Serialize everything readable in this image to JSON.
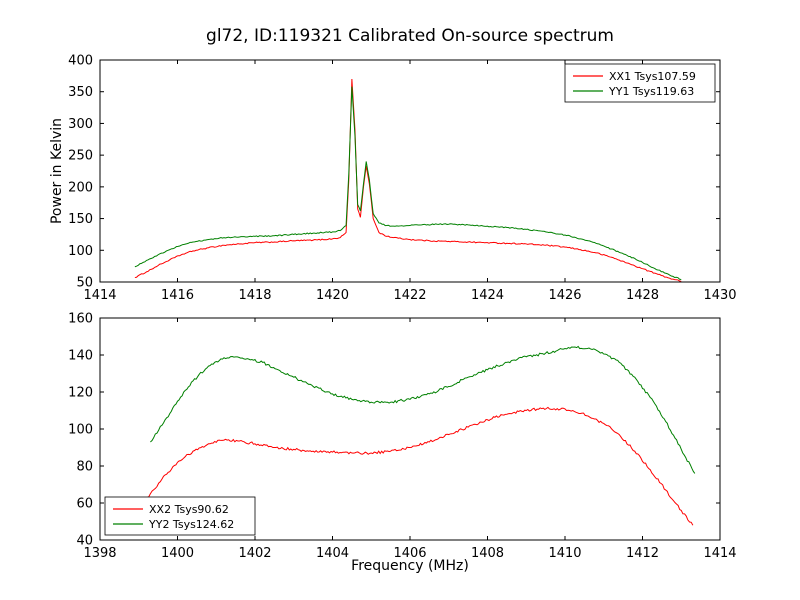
{
  "figure": {
    "background": "#ffffff",
    "frame_color": "#000000",
    "text_color": "#000000"
  },
  "chart_data": [
    {
      "type": "line",
      "title": "gl72, ID:119321 Calibrated On-source spectrum",
      "xlabel": "",
      "ylabel": "Power in Kelvin",
      "xlim": [
        1414,
        1430
      ],
      "ylim": [
        50,
        400
      ],
      "xticks": [
        1414,
        1416,
        1418,
        1420,
        1422,
        1424,
        1426,
        1428,
        1430
      ],
      "yticks": [
        50,
        100,
        150,
        200,
        250,
        300,
        350,
        400
      ],
      "grid": false,
      "legend_position": "top-right",
      "series": [
        {
          "name": "XX1 Tsys107.59",
          "color": "#ff0000",
          "noise": 0.9,
          "points": [
            [
              1414.9,
              57
            ],
            [
              1415.2,
              66
            ],
            [
              1415.5,
              76
            ],
            [
              1415.8,
              85
            ],
            [
              1416.1,
              93
            ],
            [
              1416.4,
              99
            ],
            [
              1416.8,
              104
            ],
            [
              1417.2,
              108
            ],
            [
              1417.6,
              110
            ],
            [
              1418.0,
              112
            ],
            [
              1418.5,
              113
            ],
            [
              1419.0,
              115
            ],
            [
              1419.5,
              116
            ],
            [
              1420.0,
              118
            ],
            [
              1420.2,
              120
            ],
            [
              1420.35,
              128
            ],
            [
              1420.42,
              210
            ],
            [
              1420.5,
              370
            ],
            [
              1420.58,
              290
            ],
            [
              1420.65,
              165
            ],
            [
              1420.72,
              152
            ],
            [
              1420.8,
              200
            ],
            [
              1420.87,
              233
            ],
            [
              1420.95,
              205
            ],
            [
              1421.05,
              150
            ],
            [
              1421.2,
              128
            ],
            [
              1421.4,
              122
            ],
            [
              1421.7,
              119
            ],
            [
              1422.0,
              117
            ],
            [
              1422.5,
              115
            ],
            [
              1423.0,
              114
            ],
            [
              1423.5,
              113
            ],
            [
              1424.0,
              112
            ],
            [
              1424.5,
              111
            ],
            [
              1425.0,
              110
            ],
            [
              1425.5,
              108
            ],
            [
              1426.0,
              105
            ],
            [
              1426.4,
              101
            ],
            [
              1426.8,
              96
            ],
            [
              1427.2,
              89
            ],
            [
              1427.6,
              80
            ],
            [
              1428.0,
              71
            ],
            [
              1428.4,
              62
            ],
            [
              1428.7,
              56
            ],
            [
              1429.0,
              51
            ]
          ]
        },
        {
          "name": "YY1 Tsys119.63",
          "color": "#008000",
          "noise": 0.9,
          "points": [
            [
              1414.9,
              74
            ],
            [
              1415.2,
              84
            ],
            [
              1415.5,
              93
            ],
            [
              1415.8,
              101
            ],
            [
              1416.1,
              108
            ],
            [
              1416.4,
              113
            ],
            [
              1416.8,
              117
            ],
            [
              1417.2,
              120
            ],
            [
              1417.6,
              121
            ],
            [
              1418.0,
              122
            ],
            [
              1418.5,
              123
            ],
            [
              1419.0,
              125
            ],
            [
              1419.5,
              127
            ],
            [
              1420.0,
              129
            ],
            [
              1420.2,
              131
            ],
            [
              1420.35,
              139
            ],
            [
              1420.42,
              220
            ],
            [
              1420.5,
              358
            ],
            [
              1420.58,
              280
            ],
            [
              1420.65,
              172
            ],
            [
              1420.72,
              162
            ],
            [
              1420.8,
              205
            ],
            [
              1420.87,
              240
            ],
            [
              1420.95,
              212
            ],
            [
              1421.05,
              158
            ],
            [
              1421.2,
              143
            ],
            [
              1421.4,
              139
            ],
            [
              1421.7,
              138
            ],
            [
              1422.0,
              139
            ],
            [
              1422.3,
              140
            ],
            [
              1422.7,
              141
            ],
            [
              1423.0,
              141
            ],
            [
              1423.5,
              140
            ],
            [
              1424.0,
              138
            ],
            [
              1424.5,
              136
            ],
            [
              1425.0,
              133
            ],
            [
              1425.5,
              129
            ],
            [
              1426.0,
              124
            ],
            [
              1426.4,
              118
            ],
            [
              1426.8,
              111
            ],
            [
              1427.2,
              102
            ],
            [
              1427.6,
              92
            ],
            [
              1428.0,
              81
            ],
            [
              1428.4,
              69
            ],
            [
              1428.7,
              61
            ],
            [
              1429.0,
              54
            ]
          ]
        }
      ]
    },
    {
      "type": "line",
      "title": "",
      "xlabel": "Frequency (MHz)",
      "ylabel": "",
      "xlim": [
        1398,
        1414
      ],
      "ylim": [
        40,
        160
      ],
      "xticks": [
        1398,
        1400,
        1402,
        1404,
        1406,
        1408,
        1410,
        1412,
        1414
      ],
      "yticks": [
        40,
        60,
        80,
        100,
        120,
        140,
        160
      ],
      "grid": false,
      "legend_position": "bottom-left",
      "series": [
        {
          "name": "XX2 Tsys90.62",
          "color": "#ff0000",
          "noise": 0.7,
          "points": [
            [
              1399.0,
              58
            ],
            [
              1399.3,
              65
            ],
            [
              1399.6,
              73
            ],
            [
              1400.0,
              82
            ],
            [
              1400.4,
              88
            ],
            [
              1400.8,
              92
            ],
            [
              1401.2,
              94
            ],
            [
              1401.6,
              93.5
            ],
            [
              1402.0,
              92
            ],
            [
              1402.5,
              90
            ],
            [
              1403.0,
              89
            ],
            [
              1403.5,
              88
            ],
            [
              1404.0,
              87.5
            ],
            [
              1404.5,
              87
            ],
            [
              1405.0,
              87
            ],
            [
              1405.5,
              88
            ],
            [
              1406.0,
              90
            ],
            [
              1406.5,
              93
            ],
            [
              1407.0,
              97
            ],
            [
              1407.5,
              101
            ],
            [
              1408.0,
              105
            ],
            [
              1408.5,
              108
            ],
            [
              1409.0,
              110
            ],
            [
              1409.4,
              111
            ],
            [
              1409.8,
              111
            ],
            [
              1410.2,
              110
            ],
            [
              1410.6,
              107
            ],
            [
              1411.0,
              103
            ],
            [
              1411.4,
              97
            ],
            [
              1411.8,
              88
            ],
            [
              1412.2,
              78
            ],
            [
              1412.6,
              67
            ],
            [
              1413.0,
              56
            ],
            [
              1413.3,
              48
            ]
          ]
        },
        {
          "name": "YY2 Tsys124.62",
          "color": "#008000",
          "noise": 0.7,
          "points": [
            [
              1399.3,
              93
            ],
            [
              1399.6,
              102
            ],
            [
              1400.0,
              115
            ],
            [
              1400.4,
              126
            ],
            [
              1400.8,
              134
            ],
            [
              1401.2,
              138.5
            ],
            [
              1401.5,
              139
            ],
            [
              1401.8,
              138
            ],
            [
              1402.2,
              136
            ],
            [
              1402.6,
              132
            ],
            [
              1403.0,
              128
            ],
            [
              1403.5,
              123
            ],
            [
              1404.0,
              119
            ],
            [
              1404.5,
              116
            ],
            [
              1405.0,
              114.5
            ],
            [
              1405.5,
              114.5
            ],
            [
              1406.0,
              116
            ],
            [
              1406.5,
              119
            ],
            [
              1407.0,
              123
            ],
            [
              1407.5,
              128
            ],
            [
              1408.0,
              132
            ],
            [
              1408.5,
              136
            ],
            [
              1409.0,
              139
            ],
            [
              1409.5,
              141
            ],
            [
              1410.0,
              143.5
            ],
            [
              1410.3,
              144
            ],
            [
              1410.7,
              143
            ],
            [
              1411.0,
              140.5
            ],
            [
              1411.4,
              136
            ],
            [
              1411.8,
              128
            ],
            [
              1412.2,
              117
            ],
            [
              1412.6,
              104
            ],
            [
              1413.0,
              89
            ],
            [
              1413.35,
              76
            ]
          ]
        }
      ]
    }
  ]
}
